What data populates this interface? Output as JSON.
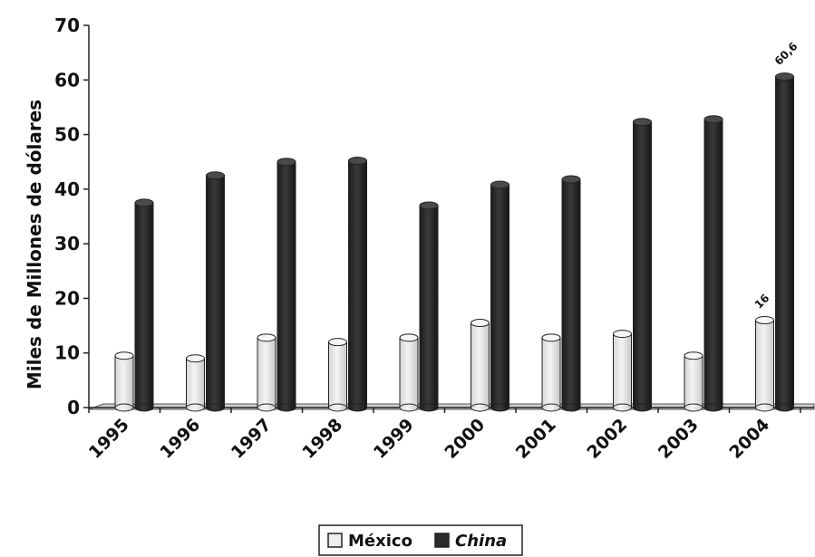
{
  "chart_data": {
    "type": "bar",
    "ylabel": "Miles de Millones de dólares",
    "xlabel": "",
    "title": "",
    "ylim": [
      0,
      70
    ],
    "yticks": [
      "0",
      "10",
      "20",
      "30",
      "40",
      "50",
      "60",
      "70"
    ],
    "categories": [
      "1995",
      "1996",
      "1997",
      "1998",
      "1999",
      "2000",
      "2001",
      "2002",
      "2003",
      "2004"
    ],
    "series": [
      {
        "name": "México",
        "color": "#e6e6e6",
        "values": [
          9.5,
          9,
          12.8,
          12,
          12.8,
          15.5,
          12.8,
          13.5,
          9.5,
          16
        ]
      },
      {
        "name": "China",
        "color": "#2b2b2b",
        "values": [
          37.5,
          42.5,
          45,
          45.2,
          37,
          40.8,
          41.8,
          52.3,
          52.8,
          60.6
        ]
      }
    ],
    "data_labels": [
      {
        "series": "México",
        "category": "2004",
        "text": "16"
      },
      {
        "series": "China",
        "category": "2004",
        "text": "60,6"
      }
    ],
    "grid": false,
    "legend": "bottom"
  }
}
